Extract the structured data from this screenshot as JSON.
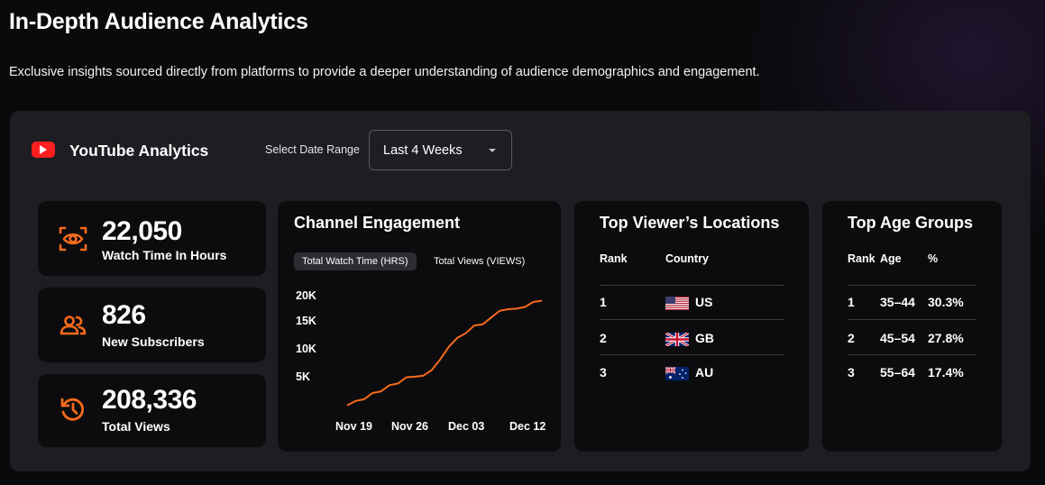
{
  "header": {
    "title": "In-Depth Audience Analytics",
    "subtitle": "Exclusive insights sourced directly from platforms to provide a deeper understanding of audience demographics and engagement."
  },
  "panel": {
    "title": "YouTube Analytics",
    "logo_icon": "youtube-play-icon",
    "date_range_label": "Select Date Range",
    "date_range_value": "Last 4 Weeks"
  },
  "stats": [
    {
      "value": "22,050",
      "label": "Watch Time In Hours",
      "icon": "eye-icon"
    },
    {
      "value": "826",
      "label": "New Subscribers",
      "icon": "users-icon"
    },
    {
      "value": "208,336",
      "label": "Total Views",
      "icon": "history-icon"
    }
  ],
  "engagement": {
    "title": "Channel Engagement",
    "tabs": [
      "Total Watch Time (HRS)",
      "Total Views (VIEWS)"
    ],
    "active_tab": 0
  },
  "chart_data": {
    "type": "line",
    "title": "Channel Engagement",
    "xlabel": "",
    "ylabel": "",
    "x_ticks": [
      "Nov 19",
      "Nov 26",
      "Dec 03",
      "Dec 12"
    ],
    "y_ticks": [
      "20K",
      "15K",
      "10K",
      "5K"
    ],
    "ylim": [
      0,
      20500
    ],
    "color": "#f76a1b",
    "grid": false,
    "series": [
      {
        "x": [
          "Nov 19",
          "Nov 20",
          "Nov 21",
          "Nov 22",
          "Nov 23",
          "Nov 24",
          "Nov 25",
          "Nov 26",
          "Nov 27",
          "Nov 28",
          "Nov 29",
          "Nov 30",
          "Dec 01",
          "Dec 02",
          "Dec 03",
          "Dec 04",
          "Dec 05",
          "Dec 06",
          "Dec 07",
          "Dec 08",
          "Dec 09",
          "Dec 10",
          "Dec 11",
          "Dec 12"
        ],
        "values": [
          200,
          1000,
          1300,
          2400,
          2700,
          3800,
          4100,
          5200,
          5300,
          5500,
          6500,
          8400,
          10600,
          12200,
          13000,
          14400,
          14600,
          15800,
          17000,
          17300,
          17400,
          17700,
          18600,
          18800
        ]
      }
    ]
  },
  "locations": {
    "title": "Top Viewer’s Locations",
    "headers": [
      "Rank",
      "Country"
    ],
    "rows": [
      {
        "rank": "1",
        "country": "US",
        "flag": "us-flag-icon"
      },
      {
        "rank": "2",
        "country": "GB",
        "flag": "gb-flag-icon"
      },
      {
        "rank": "3",
        "country": "AU",
        "flag": "au-flag-icon"
      }
    ]
  },
  "ages": {
    "title": "Top Age Groups",
    "headers": [
      "Rank",
      "Age",
      "%"
    ],
    "rows": [
      {
        "rank": "1",
        "age": "35–44",
        "pct": "30.3%"
      },
      {
        "rank": "2",
        "age": "45–54",
        "pct": "27.8%"
      },
      {
        "rank": "3",
        "age": "55–64",
        "pct": "17.4%"
      }
    ]
  },
  "colors": {
    "accent": "#f76a1b",
    "youtube": "#ff1f1f",
    "panel_bg": "#1d1d22",
    "card_bg": "#0c0c0e"
  }
}
